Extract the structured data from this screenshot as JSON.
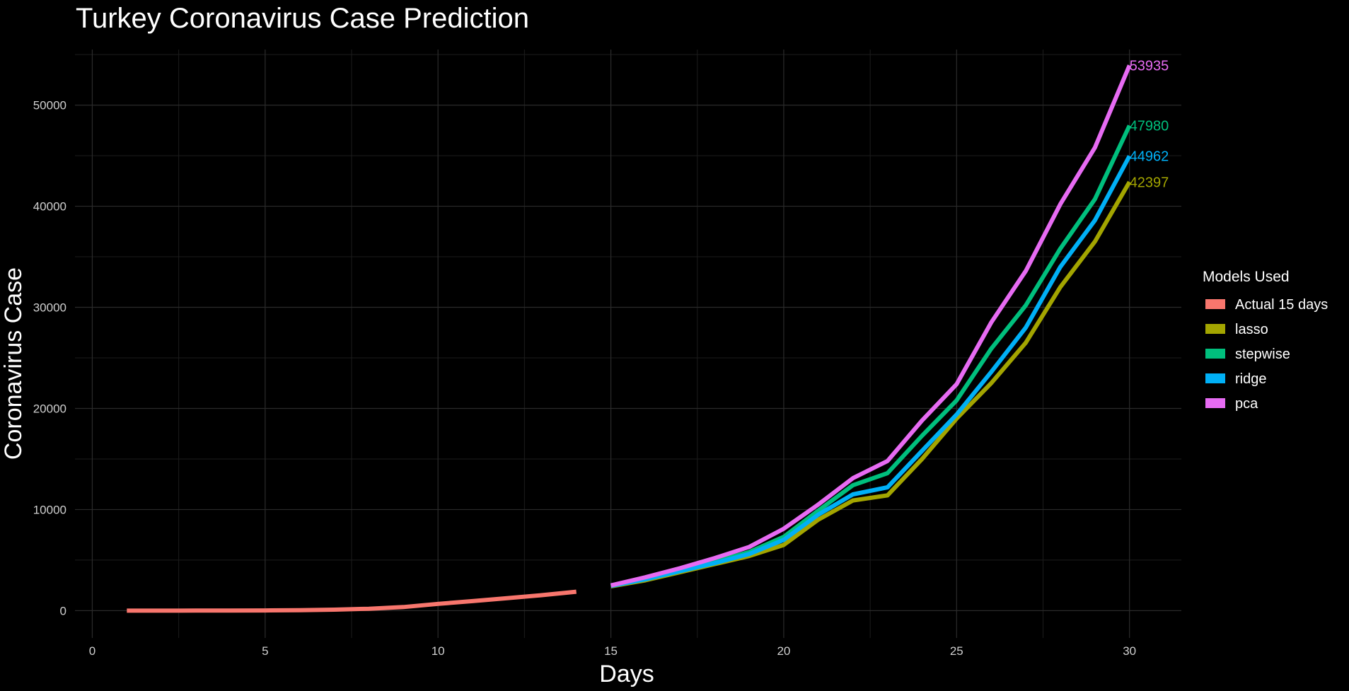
{
  "chart_data": {
    "type": "line",
    "title": "Turkey Coronavirus Case Prediction",
    "xlabel": "Days",
    "ylabel": "Coronavirus Case",
    "xlim": [
      -0.5,
      31.5
    ],
    "ylim": [
      -2700,
      55500
    ],
    "x_ticks": [
      0,
      5,
      10,
      15,
      20,
      25,
      30
    ],
    "y_ticks": [
      0,
      10000,
      20000,
      30000,
      40000,
      50000
    ],
    "grid": true,
    "legend": {
      "title": "Models Used",
      "placement": "right"
    },
    "series": [
      {
        "name": "Actual 15 days",
        "color": "#F8766D",
        "x": [
          1,
          2,
          3,
          4,
          5,
          6,
          7,
          8,
          9,
          10,
          11,
          12,
          13,
          14
        ],
        "y": [
          1,
          1,
          5,
          6,
          18,
          47,
          98,
          191,
          359,
          670,
          947,
          1236,
          1529,
          1872
        ]
      },
      {
        "name": "lasso",
        "color": "#A3A500",
        "x": [
          15,
          16,
          17,
          18,
          19,
          20,
          21,
          22,
          23,
          24,
          25,
          26,
          27,
          28,
          29,
          30
        ],
        "y": [
          2400,
          3000,
          3800,
          4600,
          5400,
          6500,
          9000,
          10900,
          11400,
          15000,
          19000,
          22500,
          26500,
          32000,
          36500,
          42397
        ]
      },
      {
        "name": "stepwise",
        "color": "#00BF7D",
        "x": [
          15,
          16,
          17,
          18,
          19,
          20,
          21,
          22,
          23,
          24,
          25,
          26,
          27,
          28,
          29,
          30
        ],
        "y": [
          2500,
          3150,
          3950,
          4850,
          5800,
          7300,
          9900,
          12400,
          13600,
          17300,
          20800,
          25900,
          30200,
          35800,
          40700,
          47980
        ]
      },
      {
        "name": "ridge",
        "color": "#00B0F6",
        "x": [
          15,
          16,
          17,
          18,
          19,
          20,
          21,
          22,
          23,
          24,
          25,
          26,
          27,
          28,
          29,
          30
        ],
        "y": [
          2450,
          3100,
          3900,
          4700,
          5600,
          7000,
          9500,
          11500,
          12200,
          15800,
          19400,
          23600,
          28000,
          34000,
          38600,
          44962
        ]
      },
      {
        "name": "pca",
        "color": "#E76BF3",
        "x": [
          15,
          16,
          17,
          18,
          19,
          20,
          21,
          22,
          23,
          24,
          25,
          26,
          27,
          28,
          29,
          30
        ],
        "y": [
          2500,
          3300,
          4200,
          5200,
          6300,
          8100,
          10500,
          13100,
          14800,
          18800,
          22400,
          28500,
          33600,
          40200,
          45800,
          53935
        ]
      }
    ],
    "end_labels": [
      {
        "text": "53935",
        "x": 30,
        "y": 53935,
        "color": "#E76BF3"
      },
      {
        "text": "47980",
        "x": 30,
        "y": 47980,
        "color": "#00BF7D"
      },
      {
        "text": "44962",
        "x": 30,
        "y": 44962,
        "color": "#00B0F6"
      },
      {
        "text": "42397",
        "x": 30,
        "y": 42397,
        "color": "#A3A500"
      }
    ]
  }
}
